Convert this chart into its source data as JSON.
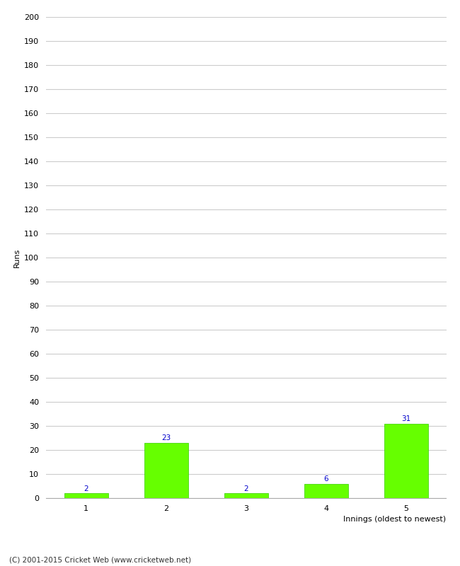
{
  "xlabel": "Innings (oldest to newest)",
  "ylabel": "Runs",
  "categories": [
    1,
    2,
    3,
    4,
    5
  ],
  "values": [
    2,
    23,
    2,
    6,
    31
  ],
  "bar_color": "#66ff00",
  "bar_edge_color": "#33cc00",
  "label_color": "#0000cc",
  "ylim": [
    0,
    200
  ],
  "yticks": [
    0,
    10,
    20,
    30,
    40,
    50,
    60,
    70,
    80,
    90,
    100,
    110,
    120,
    130,
    140,
    150,
    160,
    170,
    180,
    190,
    200
  ],
  "background_color": "#ffffff",
  "grid_color": "#cccccc",
  "footer": "(C) 2001-2015 Cricket Web (www.cricketweb.net)",
  "label_fontsize": 7.5,
  "axis_fontsize": 8,
  "footer_fontsize": 7.5,
  "bar_width": 0.55
}
